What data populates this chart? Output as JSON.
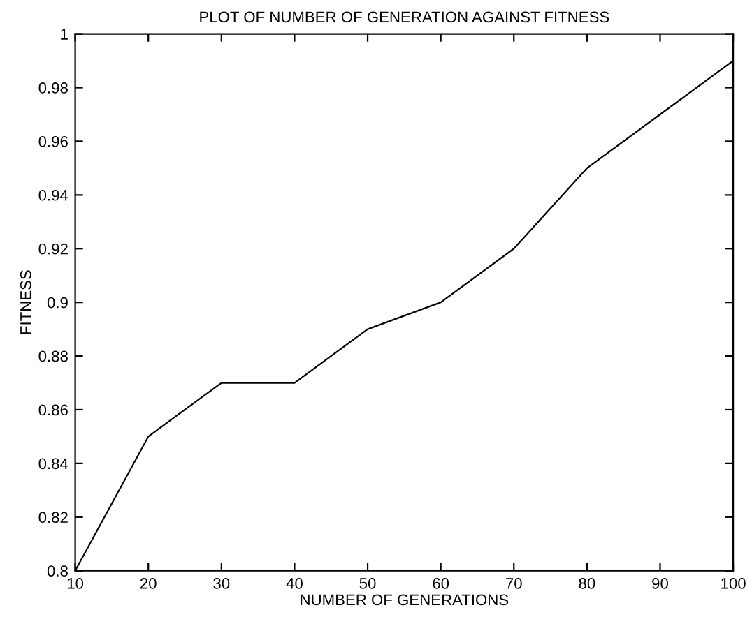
{
  "chart_data": {
    "type": "line",
    "title": "PLOT OF NUMBER OF GENERATION AGAINST FITNESS",
    "xlabel": "NUMBER OF GENERATIONS",
    "ylabel": "FITNESS",
    "x": [
      10,
      20,
      30,
      40,
      50,
      60,
      70,
      80,
      90,
      100
    ],
    "series": [
      {
        "color": "#000000",
        "values": [
          0.8,
          0.85,
          0.87,
          0.87,
          0.89,
          0.9,
          0.92,
          0.95,
          0.97,
          0.99
        ]
      }
    ],
    "xlim": [
      10,
      100
    ],
    "ylim": [
      0.8,
      1
    ],
    "xticks": [
      10,
      20,
      30,
      40,
      50,
      60,
      70,
      80,
      90,
      100
    ],
    "yticks": [
      0.8,
      0.82,
      0.84,
      0.86,
      0.88,
      0.9,
      0.92,
      0.94,
      0.96,
      0.98,
      1
    ],
    "grid": false,
    "legend": false,
    "marker": "none",
    "line_style": "solid"
  }
}
